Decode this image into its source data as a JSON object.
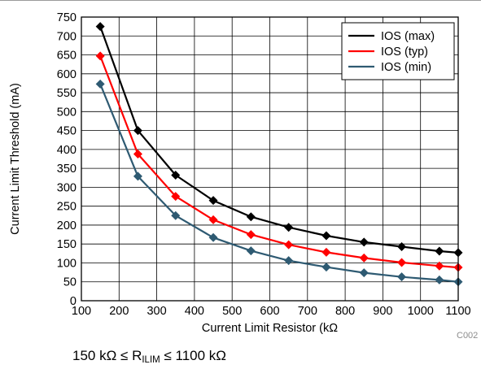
{
  "chart_data": {
    "type": "line",
    "xlabel": "Current Limit Resistor (kΩ",
    "ylabel": "Current Limit Threshold (mA)",
    "xlim": [
      100,
      1100
    ],
    "ylim": [
      0,
      750
    ],
    "xticks": [
      100,
      200,
      300,
      400,
      500,
      600,
      700,
      800,
      900,
      1000,
      1100
    ],
    "yticks": [
      0,
      50,
      100,
      150,
      200,
      250,
      300,
      350,
      400,
      450,
      500,
      550,
      600,
      650,
      700,
      750
    ],
    "grid": true,
    "legend_position": "top-right",
    "marker": "diamond",
    "x": [
      150,
      250,
      350,
      450,
      550,
      650,
      750,
      850,
      950,
      1050,
      1100
    ],
    "series": [
      {
        "name": "IOS (max)",
        "color": "#000000",
        "values": [
          725,
          450,
          332,
          265,
          222,
          194,
          172,
          155,
          143,
          131,
          127
        ]
      },
      {
        "name": "IOS (typ)",
        "color": "#ff0000",
        "values": [
          647,
          388,
          276,
          214,
          175,
          148,
          128,
          113,
          101,
          92,
          88
        ]
      },
      {
        "name": "IOS (min)",
        "color": "#2e5a72",
        "values": [
          573,
          329,
          225,
          167,
          132,
          106,
          89,
          74,
          63,
          55,
          50
        ]
      }
    ]
  },
  "figure_id": "C002",
  "condition": {
    "prefix": "150 kΩ ≤ R",
    "subscript": "ILIM",
    "suffix": " ≤ 1100 kΩ"
  }
}
